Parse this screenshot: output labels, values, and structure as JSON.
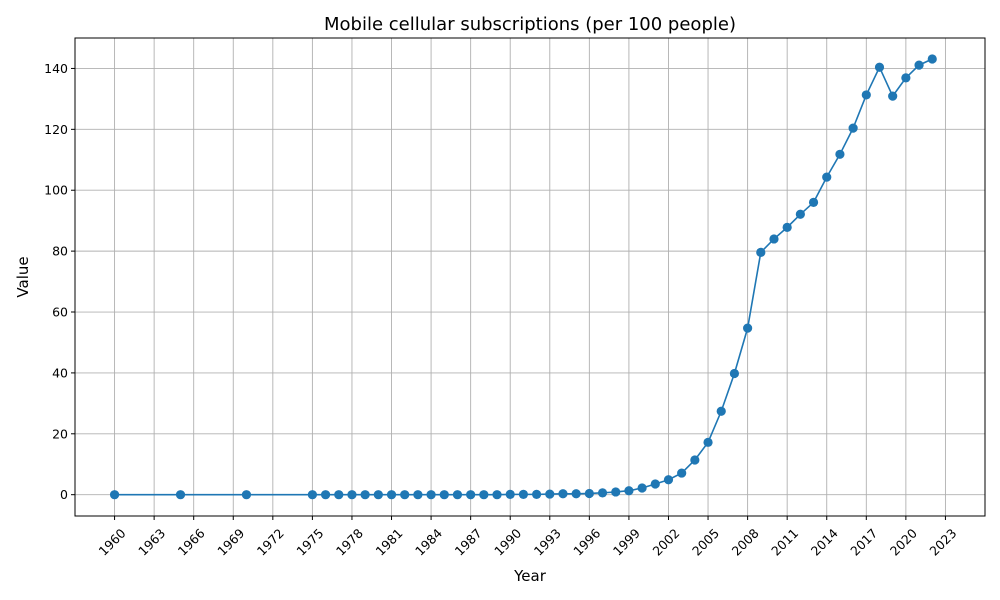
{
  "chart_data": {
    "type": "line",
    "title": "Mobile cellular subscriptions (per 100 people)",
    "xlabel": "Year",
    "ylabel": "Value",
    "xlim": [
      1957,
      2026
    ],
    "ylim": [
      -7,
      150
    ],
    "x_ticks": [
      1960,
      1963,
      1966,
      1969,
      1972,
      1975,
      1978,
      1981,
      1984,
      1987,
      1990,
      1993,
      1996,
      1999,
      2002,
      2005,
      2008,
      2011,
      2014,
      2017,
      2020,
      2023
    ],
    "y_ticks": [
      0,
      20,
      40,
      60,
      80,
      100,
      120,
      140
    ],
    "grid": true,
    "color": "#1f77b4",
    "marker": "circle",
    "series": [
      {
        "values": [
          [
            1960,
            0
          ],
          [
            1965,
            0
          ],
          [
            1970,
            0
          ],
          [
            1975,
            0
          ],
          [
            1976,
            0
          ],
          [
            1977,
            0
          ],
          [
            1978,
            0
          ],
          [
            1979,
            0
          ],
          [
            1980,
            0
          ],
          [
            1981,
            0
          ],
          [
            1982,
            0
          ],
          [
            1983,
            0
          ],
          [
            1984,
            0
          ],
          [
            1985,
            0
          ],
          [
            1986,
            0
          ],
          [
            1987,
            0
          ],
          [
            1988,
            0
          ],
          [
            1989,
            0
          ],
          [
            1990,
            0.1
          ],
          [
            1991,
            0.1
          ],
          [
            1992,
            0.1
          ],
          [
            1993,
            0.2
          ],
          [
            1994,
            0.3
          ],
          [
            1995,
            0.3
          ],
          [
            1996,
            0.4
          ],
          [
            1997,
            0.6
          ],
          [
            1998,
            0.9
          ],
          [
            1999,
            1.3
          ],
          [
            2000,
            2.2
          ],
          [
            2001,
            3.5
          ],
          [
            2002,
            4.9
          ],
          [
            2003,
            7.1
          ],
          [
            2004,
            11.4
          ],
          [
            2005,
            17.2
          ],
          [
            2006,
            27.4
          ],
          [
            2007,
            39.8
          ],
          [
            2008,
            54.7
          ],
          [
            2009,
            79.6
          ],
          [
            2010,
            84.0
          ],
          [
            2011,
            87.8
          ],
          [
            2012,
            92.1
          ],
          [
            2013,
            96.0
          ],
          [
            2014,
            104.3
          ],
          [
            2015,
            111.8
          ],
          [
            2016,
            120.4
          ],
          [
            2017,
            131.3
          ],
          [
            2018,
            140.4
          ],
          [
            2019,
            130.9
          ],
          [
            2020,
            136.9
          ],
          [
            2021,
            141.1
          ],
          [
            2022,
            143.1
          ]
        ]
      }
    ]
  }
}
